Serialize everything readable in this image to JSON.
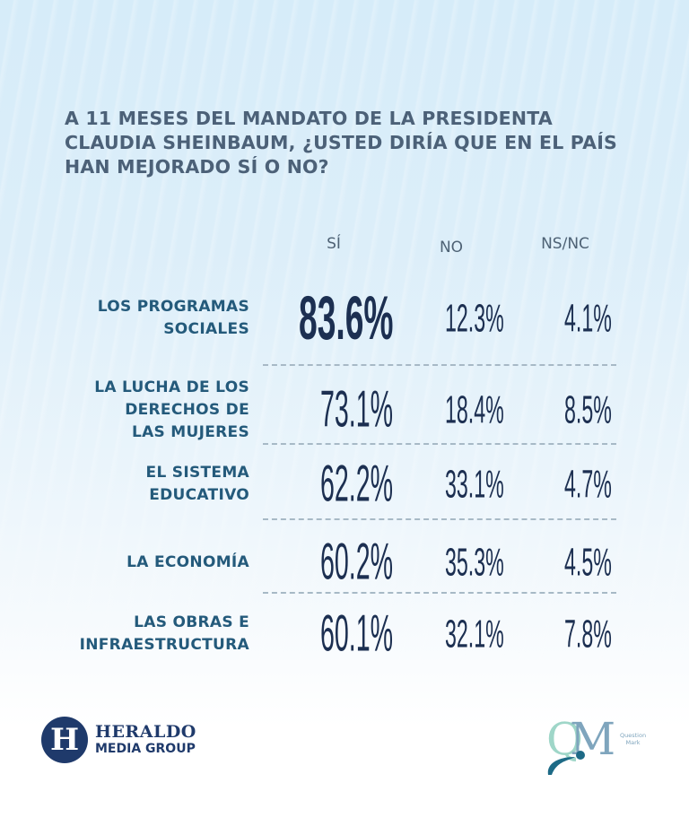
{
  "title": "A 11 MESES DEL MANDATO DE LA PRESIDENTA CLAUDIA SHEINBAUM, ¿USTED DIRÍA QUE EN EL PAÍS HAN MEJORADO SÍ O NO?",
  "chart_data": {
    "type": "table",
    "title": "A 11 MESES DEL MANDATO DE LA PRESIDENTA CLAUDIA SHEINBAUM, ¿USTED DIRÍA QUE EN EL PAÍS HAN MEJORADO SÍ O NO?",
    "columns": [
      "SÍ",
      "NO",
      "NS/NC"
    ],
    "rows": [
      {
        "label": "LOS PROGRAMAS SOCIALES",
        "label_lines": [
          "LOS PROGRAMAS",
          "SOCIALES"
        ],
        "values": [
          83.6,
          12.3,
          4.1
        ],
        "display": [
          "83.6%",
          "12.3%",
          "4.1%"
        ]
      },
      {
        "label": "LA LUCHA DE LOS DERECHOS DE LAS MUJERES",
        "label_lines": [
          "LA LUCHA DE LOS",
          "DERECHOS DE",
          "LAS MUJERES"
        ],
        "values": [
          73.1,
          18.4,
          8.5
        ],
        "display": [
          "73.1%",
          "18.4%",
          "8.5%"
        ]
      },
      {
        "label": "EL SISTEMA EDUCATIVO",
        "label_lines": [
          "EL SISTEMA",
          "EDUCATIVO"
        ],
        "values": [
          62.2,
          33.1,
          4.7
        ],
        "display": [
          "62.2%",
          "33.1%",
          "4.7%"
        ]
      },
      {
        "label": "LA ECONOMÍA",
        "label_lines": [
          "LA ECONOMÍA"
        ],
        "values": [
          60.2,
          35.3,
          4.5
        ],
        "display": [
          "60.2%",
          "35.3%",
          "4.5%"
        ]
      },
      {
        "label": "LAS OBRAS E INFRAESTRUCTURA",
        "label_lines": [
          "LAS OBRAS E",
          "INFRAESTRUCTURA"
        ],
        "values": [
          60.1,
          32.1,
          7.8
        ],
        "display": [
          "60.1%",
          "32.1%",
          "7.8%"
        ]
      }
    ],
    "unit": "%"
  },
  "colors": {
    "title": "#4c6178",
    "row_label": "#245a7b",
    "values": "#1c2f51",
    "separator": "#a7b9c6",
    "heraldo_blue": "#1f3a6b",
    "qm_green": "#9fd6c8",
    "qm_blue": "#7fa5bd"
  },
  "logos": {
    "heraldo": {
      "mark": "H",
      "name": "HERALDO",
      "sub": "MEDIA GROUP"
    },
    "qm": {
      "q": "Q",
      "m": "M",
      "text_line1": "Question",
      "text_line2": "Mark"
    }
  }
}
